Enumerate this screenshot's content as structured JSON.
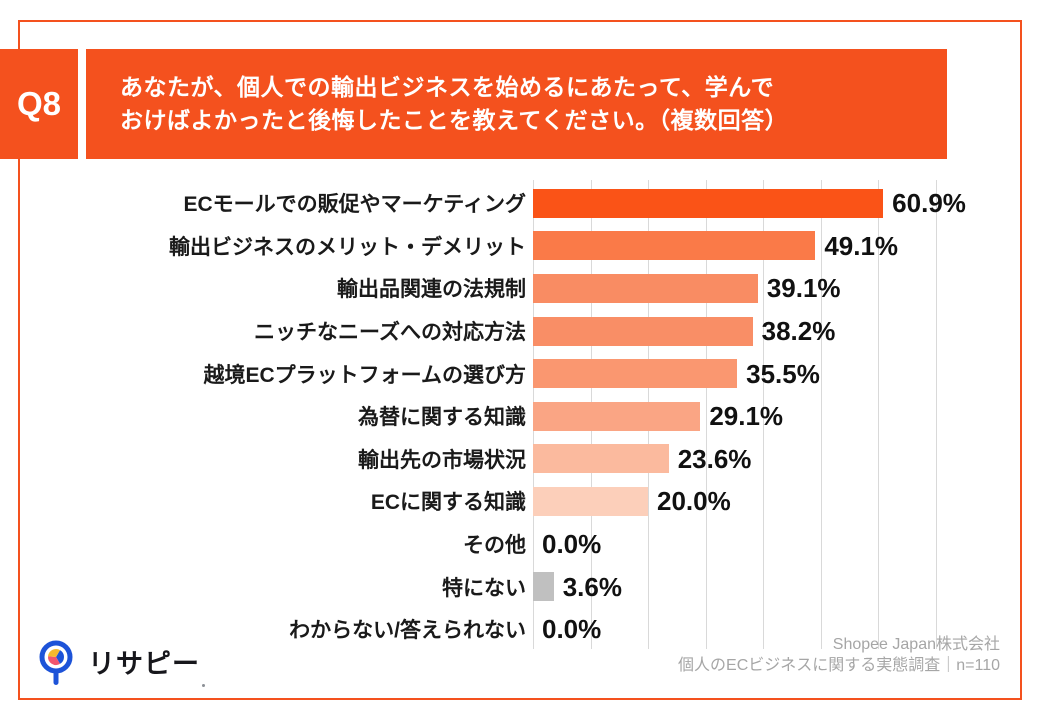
{
  "question": {
    "number": "Q8",
    "title_line1": "あなたが、個人での輸出ビジネスを始めるにあたって、学んで",
    "title_line2": "おけばよかったと後悔したことを教えてください。（複数回答）"
  },
  "chart_data": {
    "type": "bar",
    "orientation": "horizontal",
    "unit": "%",
    "categories": [
      "ECモールでの販促やマーケティング",
      "輸出ビジネスのメリット・デメリット",
      "輸出品関連の法規制",
      "ニッチなニーズへの対応方法",
      "越境ECプラットフォームの選び方",
      "為替に関する知識",
      "輸出先の市場状況",
      "ECに関する知識",
      "その他",
      "特にない",
      "わからない/答えられない"
    ],
    "values": [
      60.9,
      49.1,
      39.1,
      38.2,
      35.5,
      29.1,
      23.6,
      20.0,
      0.0,
      3.6,
      0.0
    ],
    "value_labels": [
      "60.9%",
      "49.1%",
      "39.1%",
      "38.2%",
      "35.5%",
      "29.1%",
      "23.6%",
      "20.0%",
      "0.0%",
      "3.6%",
      "0.0%"
    ],
    "bar_colors": [
      "#fa5317",
      "#fa7a48",
      "#f98c63",
      "#f98e66",
      "#fa9770",
      "#faa584",
      "#fbba9e",
      "#fccfba",
      null,
      "#c0c0c0",
      null
    ],
    "xlim": [
      0,
      70
    ],
    "gridline_interval": 10,
    "grid": true,
    "legend": "none",
    "data_labels": "outside-end"
  },
  "footer": {
    "logo_text": "リサピー",
    "source_line1": "Shopee Japan株式会社",
    "source_line2": "個人のECビジネスに関する実態調査｜n=110"
  },
  "colors": {
    "accent": "#f4511e",
    "grid": "#d9d9d9",
    "muted_bar": "#c0c0c0",
    "footer_text": "#a6a6a6",
    "logo_blue": "#1d53d8",
    "logo_yellow": "#f6b92e",
    "logo_pink": "#f2566e"
  }
}
